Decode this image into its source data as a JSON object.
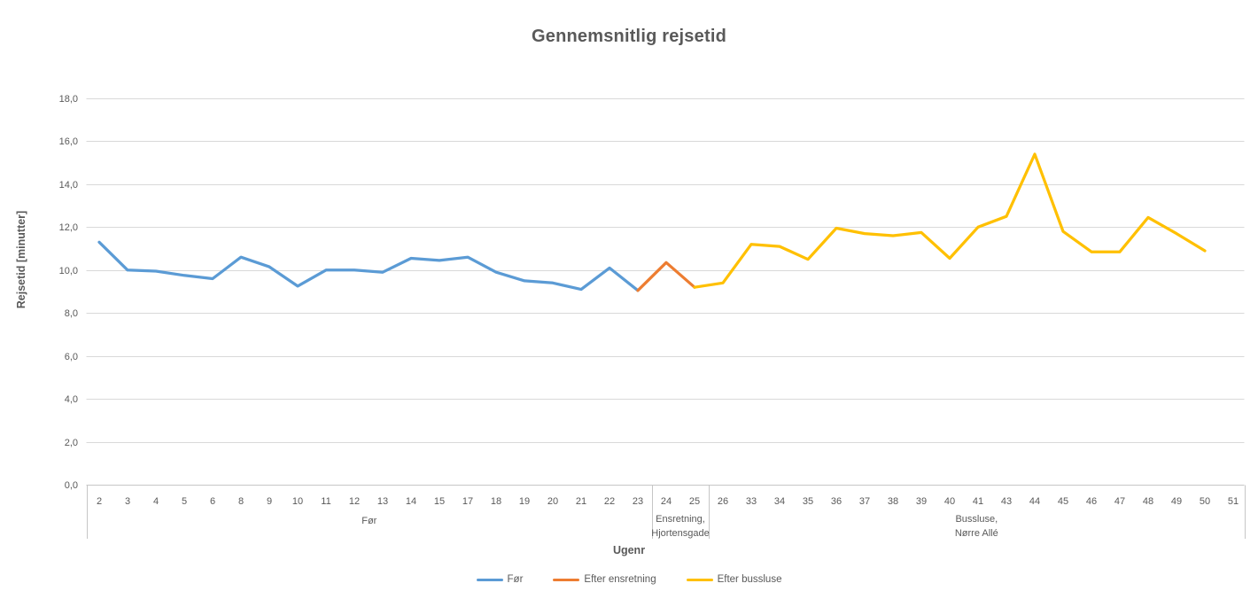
{
  "chart_data": {
    "type": "line",
    "title": "Gennemsnitlig rejsetid",
    "xlabel": "Ugenr",
    "ylabel": "Rejsetid [minutter]",
    "ylim": [
      0,
      18
    ],
    "ytick_step": 2,
    "ytick_labels": [
      "0,0",
      "2,0",
      "4,0",
      "6,0",
      "8,0",
      "10,0",
      "12,0",
      "14,0",
      "16,0",
      "18,0"
    ],
    "grid": true,
    "legend_position": "bottom",
    "text_color": "#595959",
    "gridline_color": "#D9D9D9",
    "axis_line_color": "#C6C6C6",
    "categories": [
      "2",
      "3",
      "4",
      "5",
      "6",
      "8",
      "9",
      "10",
      "11",
      "12",
      "13",
      "14",
      "15",
      "17",
      "18",
      "19",
      "20",
      "21",
      "22",
      "23",
      "24",
      "25",
      "26",
      "33",
      "34",
      "35",
      "36",
      "37",
      "38",
      "39",
      "40",
      "41",
      "43",
      "44",
      "45",
      "46",
      "47",
      "48",
      "49",
      "50",
      "51"
    ],
    "category_groups": [
      {
        "label_lines": [
          "Før"
        ],
        "start_index": 0,
        "end_index": 19
      },
      {
        "label_lines": [
          "Ensretning,",
          "Hjortensgade"
        ],
        "start_index": 20,
        "end_index": 21
      },
      {
        "label_lines": [
          "Bussluse,",
          "Nørre Allé"
        ],
        "start_index": 22,
        "end_index": 40
      }
    ],
    "series": [
      {
        "name": "Før",
        "color": "#5B9BD5",
        "values": [
          11.3,
          10.0,
          9.95,
          9.75,
          9.6,
          10.6,
          10.15,
          9.25,
          10.0,
          10.0,
          9.9,
          10.55,
          10.45,
          10.6,
          9.9,
          9.5,
          9.4,
          9.1,
          10.1,
          9.05,
          null,
          null,
          null,
          null,
          null,
          null,
          null,
          null,
          null,
          null,
          null,
          null,
          null,
          null,
          null,
          null,
          null,
          null,
          null,
          null,
          null
        ]
      },
      {
        "name": "Efter ensretning",
        "color": "#ED7D31",
        "values": [
          null,
          null,
          null,
          null,
          null,
          null,
          null,
          null,
          null,
          null,
          null,
          null,
          null,
          null,
          null,
          null,
          null,
          null,
          null,
          9.05,
          10.35,
          9.2,
          null,
          null,
          null,
          null,
          null,
          null,
          null,
          null,
          null,
          null,
          null,
          null,
          null,
          null,
          null,
          null,
          null,
          null,
          null
        ]
      },
      {
        "name": "Efter bussluse",
        "color": "#FFC000",
        "values": [
          null,
          null,
          null,
          null,
          null,
          null,
          null,
          null,
          null,
          null,
          null,
          null,
          null,
          null,
          null,
          null,
          null,
          null,
          null,
          null,
          null,
          9.2,
          9.4,
          11.2,
          11.1,
          10.5,
          11.95,
          11.7,
          11.6,
          11.75,
          10.55,
          12.0,
          12.5,
          15.4,
          11.8,
          10.85,
          10.85,
          12.45,
          11.7,
          10.9,
          null
        ]
      }
    ]
  },
  "legend": {
    "items": [
      {
        "label": "Før",
        "color": "#5B9BD5"
      },
      {
        "label": "Efter ensretning",
        "color": "#ED7D31"
      },
      {
        "label": "Efter bussluse",
        "color": "#FFC000"
      }
    ]
  }
}
